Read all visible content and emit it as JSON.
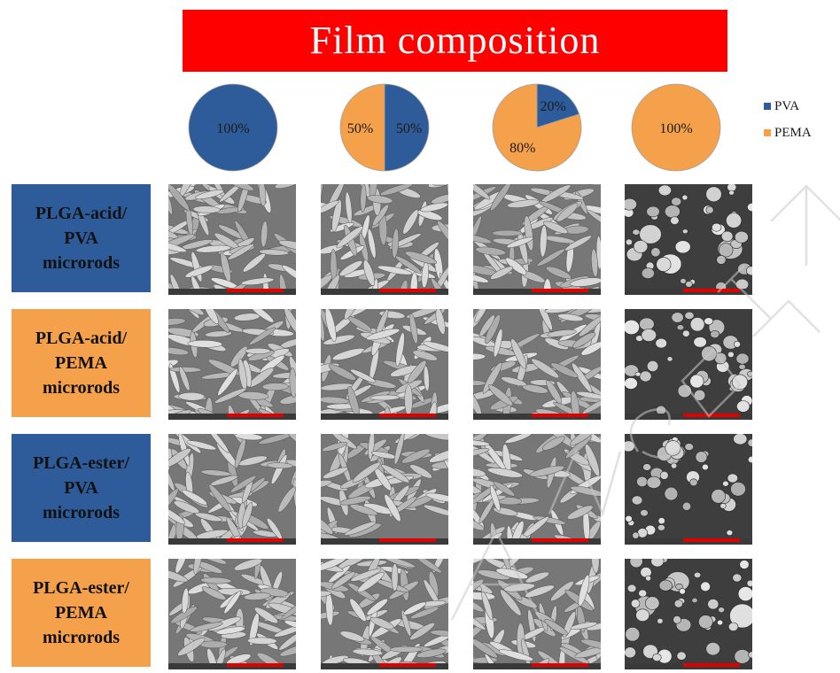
{
  "title": "Film composition",
  "legend": {
    "items": [
      {
        "label": "PVA",
        "color": "#2e5c9a"
      },
      {
        "label": "PEMA",
        "color": "#f5a04a"
      }
    ]
  },
  "pies": [
    {
      "labels": [
        "100%"
      ],
      "pva_fraction": 1.0
    },
    {
      "labels": [
        "50%",
        "50%"
      ],
      "pva_fraction": 0.5
    },
    {
      "labels": [
        "20%",
        "80%"
      ],
      "pva_fraction": 0.2
    },
    {
      "labels": [
        "100%"
      ],
      "pva_fraction": 0.0
    }
  ],
  "rows": [
    {
      "lines": [
        "PLGA-acid/",
        "PVA",
        "microrods"
      ],
      "color": "#2e5c9a"
    },
    {
      "lines": [
        "PLGA-acid/",
        "PEMA",
        "microrods"
      ],
      "color": "#f5a04a"
    },
    {
      "lines": [
        "PLGA-ester/",
        "PVA",
        "microrods"
      ],
      "color": "#2e5c9a"
    },
    {
      "lines": [
        "PLGA-ester/",
        "PEMA",
        "microrods"
      ],
      "color": "#f5a04a"
    }
  ],
  "micrograph_morphology": [
    [
      "rods",
      "rods",
      "rods",
      "spheres"
    ],
    [
      "rods",
      "rods",
      "rods",
      "spheres"
    ],
    [
      "rods",
      "rods",
      "rods",
      "spheres"
    ],
    [
      "rods",
      "rods",
      "rods",
      "spheres"
    ]
  ],
  "colors": {
    "title_bg": "#ff0000",
    "scale_bar": "#e00000"
  }
}
